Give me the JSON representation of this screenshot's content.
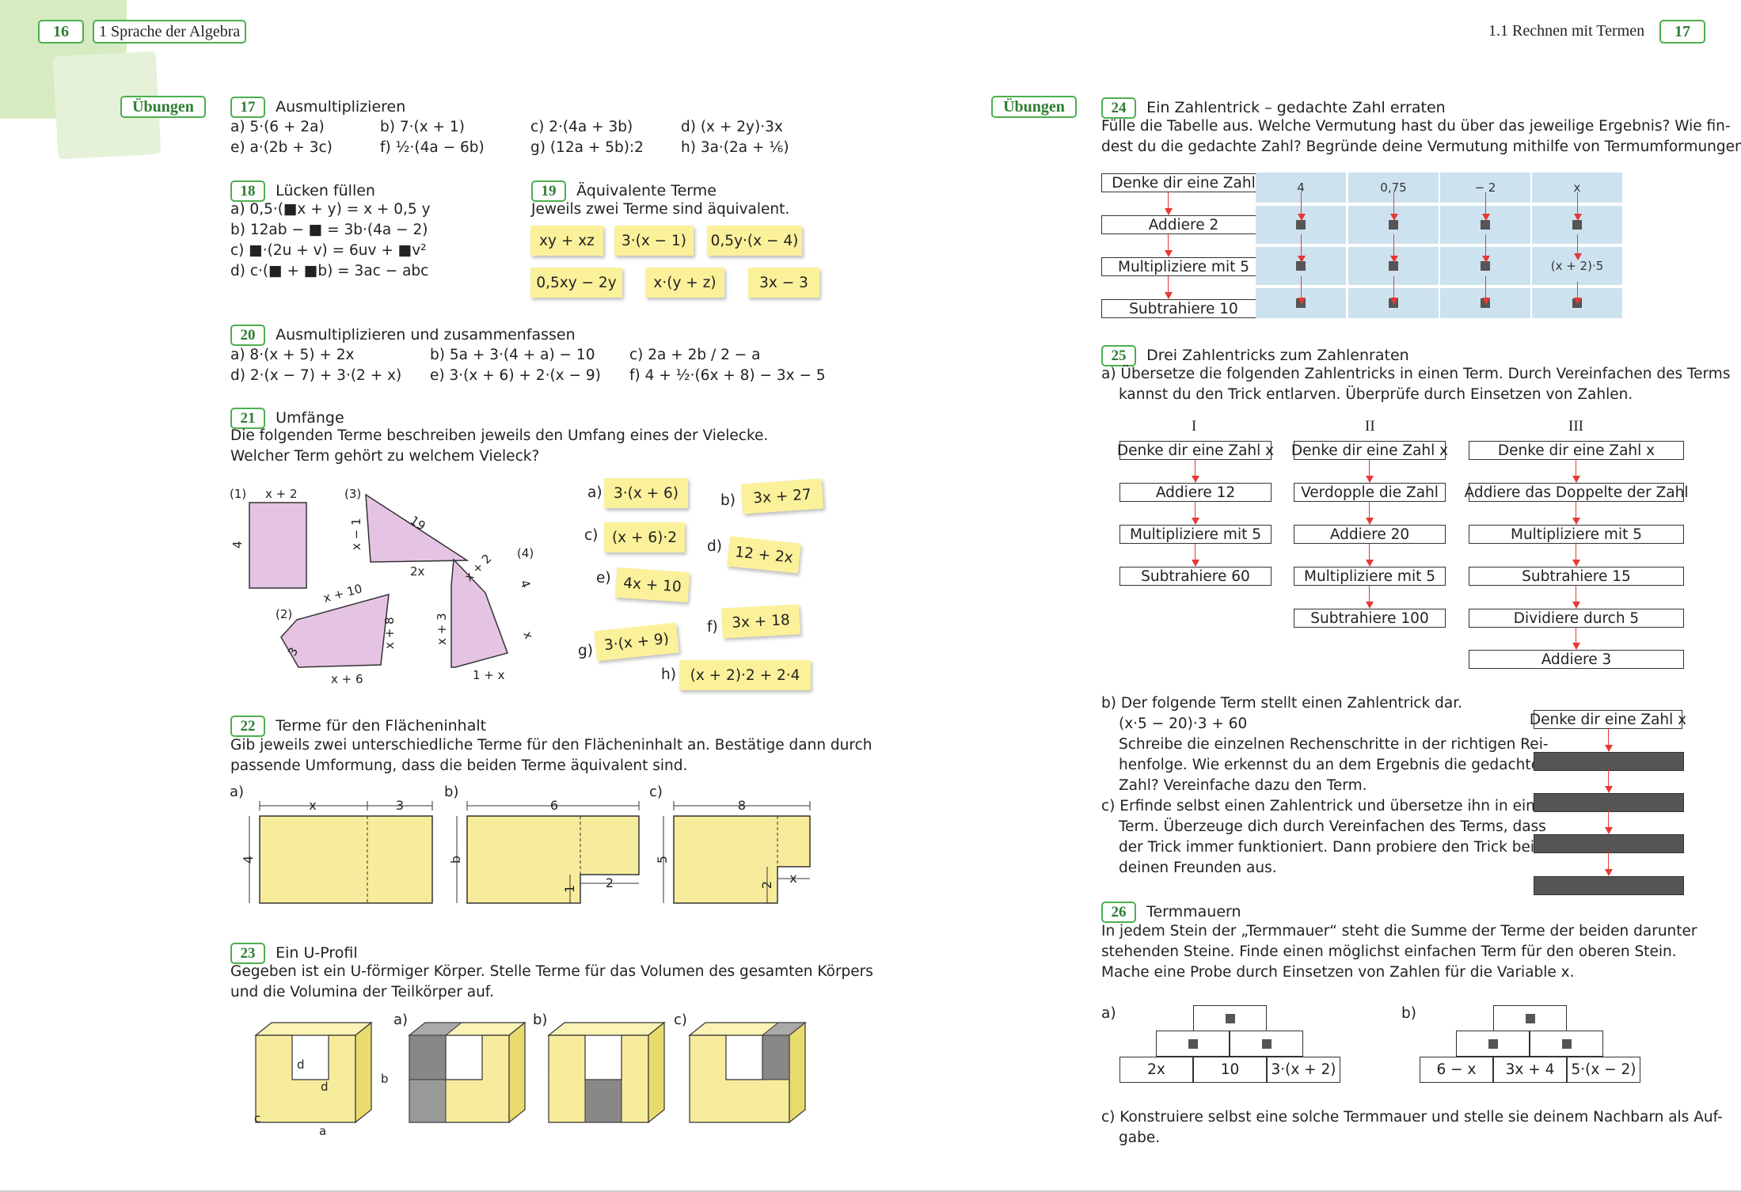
{
  "header": {
    "left_page_num": "16",
    "left_chapter": "1  Sprache der Algebra",
    "right_section": "1.1  Rechnen mit Termen",
    "right_page_num": "17"
  },
  "uebungen_label": "Übungen",
  "ex17": {
    "num": "17",
    "title": "Ausmultiplizieren",
    "items": [
      "a) 5·(6 + 2a)",
      "b) 7·(x + 1)",
      "c) 2·(4a + 3b)",
      "d) (x + 2y)·3x",
      "e) a·(2b + 3c)",
      "f)  ½·(4a − 6b)",
      "g) (12a + 5b):2",
      "h) 3a·(2a + ⅙)"
    ]
  },
  "ex18": {
    "num": "18",
    "title": "Lücken füllen",
    "items": [
      "a) 0,5·(■x + y) = x + 0,5 y",
      "b) 12ab − ■ = 3b·(4a − 2)",
      "c) ■·(2u + v) = 6uv + ■v²",
      "d) c·(■ + ■b) = 3ac − abc"
    ]
  },
  "ex19": {
    "num": "19",
    "title": "Äquivalente Terme",
    "text": "Jeweils zwei Terme sind äquivalent.",
    "cards": [
      "xy + xz",
      "3·(x − 1)",
      "0,5y·(x − 4)",
      "0,5xy − 2y",
      "x·(y + z)",
      "3x − 3"
    ]
  },
  "ex20": {
    "num": "20",
    "title": "Ausmultiplizieren und zusammenfassen",
    "items": [
      "a) 8·(x + 5) + 2x",
      "b) 5a + 3·(4 + a) − 10",
      "c)  2a + 2b / 2  − a",
      "d) 2·(x − 7) + 3·(2 + x)",
      "e) 3·(x + 6) + 2·(x − 9)",
      "f)  4 + ½·(6x + 8) − 3x − 5"
    ]
  },
  "ex21": {
    "num": "21",
    "title": "Umfänge",
    "text1": "Die folgenden Terme beschreiben jeweils den Umfang eines der Vielecke.",
    "text2": "Welcher Term gehört zu welchem Vieleck?",
    "shape_labels": [
      "(1)",
      "x + 2",
      "4",
      "(3)",
      "19",
      "x − 1",
      "2x",
      "(2)",
      "x + 10",
      "3",
      "x + 8",
      "x + 6",
      "(4)",
      "x + 2",
      "4",
      "x + 3",
      "x",
      "1 + x"
    ],
    "cards": [
      {
        "letter": "a)",
        "term": "3·(x + 6)"
      },
      {
        "letter": "b)",
        "term": "3x + 27"
      },
      {
        "letter": "c)",
        "term": "(x + 6)·2"
      },
      {
        "letter": "d)",
        "term": "12 + 2x"
      },
      {
        "letter": "e)",
        "term": "4x + 10"
      },
      {
        "letter": "f)",
        "term": "3x + 18"
      },
      {
        "letter": "g)",
        "term": "3·(x + 9)"
      },
      {
        "letter": "h)",
        "term": "(x + 2)·2 + 2·4"
      }
    ]
  },
  "ex22": {
    "num": "22",
    "title": "Terme für den Flächeninhalt",
    "text1": "Gib jeweils zwei unterschiedliche Terme für den Flächeninhalt an. Bestätige dann durch",
    "text2": "passende Umformung, dass die beiden Terme äquivalent sind.",
    "labels": [
      "a)",
      "b)",
      "c)"
    ],
    "dims_a": [
      "x",
      "3",
      "4"
    ],
    "dims_b": [
      "6",
      "b",
      "1",
      "2"
    ],
    "dims_c": [
      "8",
      "5",
      "2",
      "x"
    ]
  },
  "ex23": {
    "num": "23",
    "title": "Ein U-Profil",
    "text1": "Gegeben ist ein U-förmiger Körper. Stelle Terme für das Volumen des gesamten Körpers",
    "text2": "und die Volumina der Teilkörper auf.",
    "labels": [
      "a)",
      "b)",
      "c)"
    ],
    "dims": [
      "d",
      "d",
      "b",
      "c",
      "a"
    ]
  },
  "ex24": {
    "num": "24",
    "title": "Ein Zahlentrick – gedachte Zahl erraten",
    "text1": "Fülle die Tabelle aus. Welche Vermutung hast du über das jeweilige Ergebnis? Wie fin-",
    "text2": "dest du die gedachte Zahl? Begründe deine Vermutung mithilfe von Termumformungen.",
    "steps": [
      "Denke dir eine Zahl",
      "Addiere 2",
      "Multipliziere mit 5",
      "Subtrahiere 10"
    ],
    "columns": [
      "4",
      "0,75",
      "− 2",
      "x"
    ],
    "special_cell": "(x + 2)·5"
  },
  "ex25": {
    "num": "25",
    "title": "Drei Zahlentricks zum Zahlenraten",
    "a1": "a) Übersetze die folgenden Zahlentricks in einen Term. Durch Vereinfachen des Terms",
    "a2": "kannst du den Trick entlarven. Überprüfe durch Einsetzen von Zahlen.",
    "tricks": [
      {
        "label": "I",
        "steps": [
          "Denke dir eine Zahl x",
          "Addiere 12",
          "Multipliziere mit 5",
          "Subtrahiere 60"
        ]
      },
      {
        "label": "II",
        "steps": [
          "Denke dir eine Zahl x",
          "Verdopple die Zahl",
          "Addiere 20",
          "Multipliziere mit 5",
          "Subtrahiere 100"
        ]
      },
      {
        "label": "III",
        "steps": [
          "Denke dir eine Zahl x",
          "Addiere das Doppelte der Zahl",
          "Multipliziere mit 5",
          "Subtrahiere 15",
          "Dividiere durch 5",
          "Addiere 3"
        ]
      }
    ],
    "b_lines": [
      "b) Der folgende Term stellt einen Zahlentrick dar.",
      "(x·5 − 20)·3 + 60",
      "Schreibe die einzelnen Rechenschritte in der richtigen Rei-",
      "henfolge. Wie erkennst du an dem Ergebnis die gedachte",
      "Zahl? Vereinfache dazu den Term."
    ],
    "c_lines": [
      "c) Erfinde selbst einen Zahlentrick und übersetze ihn in einen",
      "Term. Überzeuge dich durch Vereinfachen des Terms, dass",
      "der Trick immer funktioniert. Dann probiere den Trick bei",
      "deinen Freunden aus."
    ],
    "b_box": "Denke dir eine Zahl x"
  },
  "ex26": {
    "num": "26",
    "title": "Termmauern",
    "text1": "In jedem Stein der „Termmauer“ steht die Summe der Terme der beiden darunter",
    "text2": "stehenden Steine. Finde einen möglichst einfachen Term für den oberen Stein.",
    "text3": "Mache eine Probe durch Einsetzen von Zahlen für die Variable x.",
    "wall_a": {
      "label": "a)",
      "bottom": [
        "2x",
        "10",
        "3·(x + 2)"
      ]
    },
    "wall_b": {
      "label": "b)",
      "bottom": [
        "6 − x",
        "3x + 4",
        "5·(x − 2)"
      ]
    },
    "c1": "c) Konstruiere selbst eine solche Termmauer und stelle sie deinem Nachbarn als Auf-",
    "c2": "gabe."
  },
  "colors": {
    "green": "#4caf50",
    "card_yellow": "#fbf19a",
    "shape_pink": "#e5c4e3",
    "table_blue": "#cde2ef",
    "arrow_red": "#e53935",
    "panel_yellow": "#f7ec9c"
  }
}
